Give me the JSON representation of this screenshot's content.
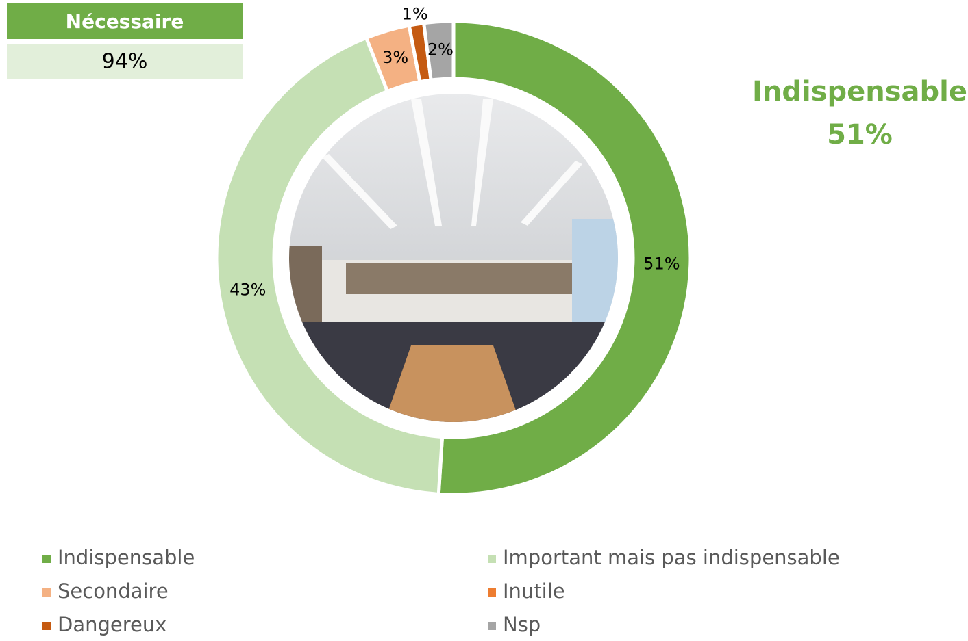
{
  "chart_data": {
    "type": "donut",
    "categories": [
      "Indispensable",
      "Important mais pas indispensable",
      "Secondaire",
      "Inutile",
      "Dangereux",
      "Nsp"
    ],
    "values": [
      51,
      43,
      3,
      0,
      1,
      2
    ],
    "value_labels": [
      "51%",
      "43%",
      "3%",
      null,
      "1%",
      "2%"
    ],
    "colors": [
      "#70ad47",
      "#c5e0b4",
      "#f4b183",
      "#ed7d31",
      "#c55a11",
      "#a5a5a5"
    ],
    "legend": "bottom",
    "summary": {
      "title": "Nécessaire",
      "text": "94%"
    },
    "callout": {
      "title": "Indispensable",
      "text": "51%"
    }
  }
}
